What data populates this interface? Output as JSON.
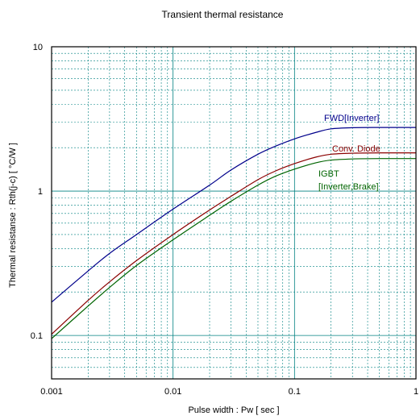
{
  "chart_data": {
    "type": "line",
    "title": "Transient thermal resistance",
    "xlabel": "Pulse width  :  Pw  [ sec ]",
    "ylabel": "Thermal resistanse  :  Rth(j-c)  [ °C/W ]",
    "x_scale": "log",
    "y_scale": "log",
    "xlim": [
      0.001,
      1
    ],
    "ylim": [
      0.05,
      10
    ],
    "grid": true,
    "x_ticks": [
      {
        "value": 0.001,
        "label": "0.001"
      },
      {
        "value": 0.01,
        "label": "0.01"
      },
      {
        "value": 0.1,
        "label": "0.1"
      },
      {
        "value": 1,
        "label": "1"
      }
    ],
    "y_ticks": [
      {
        "value": 0.1,
        "label": "0.1"
      },
      {
        "value": 1,
        "label": "1"
      },
      {
        "value": 10,
        "label": "10"
      }
    ],
    "x": [
      0.001,
      0.002,
      0.003,
      0.005,
      0.01,
      0.02,
      0.03,
      0.05,
      0.07,
      0.1,
      0.15,
      0.2,
      0.3,
      0.5,
      1
    ],
    "series": [
      {
        "name": "FWD[Inverter]",
        "color": "#00008b",
        "values": [
          0.17,
          0.28,
          0.37,
          0.5,
          0.75,
          1.1,
          1.4,
          1.8,
          2.05,
          2.3,
          2.55,
          2.7,
          2.75,
          2.76,
          2.76
        ]
      },
      {
        "name": "Conv. Diode",
        "color": "#8b0000",
        "values": [
          0.102,
          0.175,
          0.235,
          0.33,
          0.5,
          0.74,
          0.92,
          1.2,
          1.38,
          1.55,
          1.72,
          1.8,
          1.83,
          1.84,
          1.84
        ]
      },
      {
        "name": "IGBT\n[Inverter,Brake]",
        "label_lines": [
          "IGBT",
          "[Inverter,Brake]"
        ],
        "color": "#006400",
        "values": [
          0.095,
          0.16,
          0.215,
          0.305,
          0.46,
          0.68,
          0.85,
          1.1,
          1.27,
          1.42,
          1.57,
          1.64,
          1.67,
          1.68,
          1.68
        ]
      }
    ]
  },
  "colors": {
    "grid": "#008080",
    "axis": "#000000"
  }
}
